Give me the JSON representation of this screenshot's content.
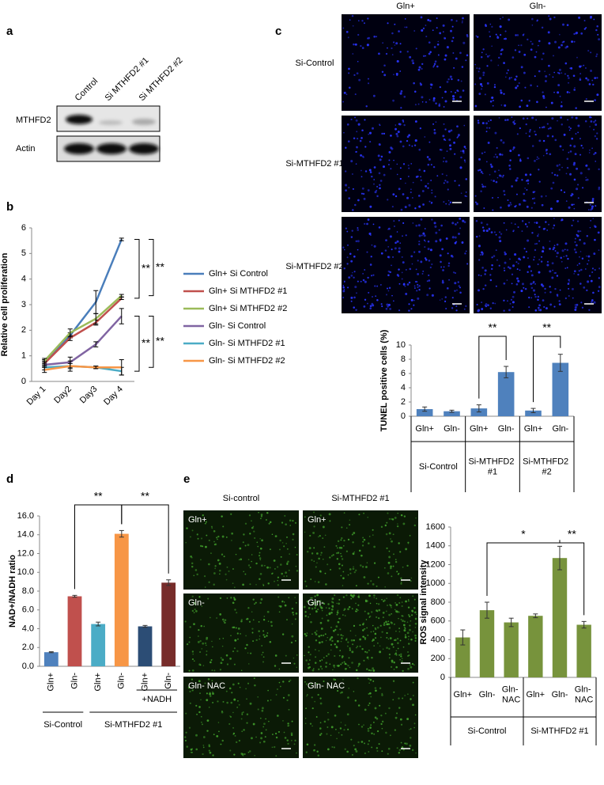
{
  "panel_labels": [
    "a",
    "b",
    "c",
    "d",
    "e"
  ],
  "blot": {
    "lanes": [
      "Control",
      "Si MTHFD2 #1",
      "Si MTHFD2 #2"
    ],
    "rows": [
      "MTHFD2",
      "Actin"
    ]
  },
  "microscopy_c": {
    "columns": [
      "Gln+",
      "Gln-"
    ],
    "rows": [
      "Si-Control",
      "Si-MTHFD2 #1",
      "Si-MTHFD2 #2"
    ]
  },
  "microscopy_e": {
    "columns": [
      "Si-control",
      "Si-MTHFD2 #1"
    ],
    "image_labels": [
      [
        "Gln+",
        "Gln+"
      ],
      [
        "Gln-",
        "Gln-"
      ],
      [
        "Gln- NAC",
        "Gln- NAC"
      ]
    ]
  },
  "chart_data": [
    {
      "type": "line",
      "y_label": "Relative cell proliferation",
      "categories": [
        "Day 1",
        "Day2",
        "Day3",
        "Day 4"
      ],
      "series": [
        {
          "name": "Gln+ Si Control",
          "color": "#4a7ebb",
          "values": [
            0.75,
            1.8,
            3.1,
            5.55
          ],
          "errors": [
            0.1,
            0.1,
            0.45,
            0.05
          ]
        },
        {
          "name": "Gln+ Si MTHFD2 #1",
          "color": "#c0504d",
          "values": [
            0.7,
            1.7,
            2.3,
            3.25
          ],
          "errors": [
            0.1,
            0.1,
            0.1,
            0.05
          ]
        },
        {
          "name": "Gln+ Si MTHFD2 #2",
          "color": "#9bbb59",
          "values": [
            0.8,
            1.9,
            2.45,
            3.35
          ],
          "errors": [
            0.1,
            0.15,
            0.2,
            0.05
          ]
        },
        {
          "name": "Gln- Si Control",
          "color": "#8064a2",
          "values": [
            0.65,
            0.75,
            1.45,
            2.55
          ],
          "errors": [
            0.1,
            0.2,
            0.1,
            0.3
          ]
        },
        {
          "name": "Gln- Si MTHFD2 #1",
          "color": "#4bacc6",
          "values": [
            0.55,
            0.6,
            0.55,
            0.4
          ],
          "errors": [
            0.1,
            0.2,
            0.05,
            0.15
          ]
        },
        {
          "name": "Gln- Si MTHFD2 #2",
          "color": "#f79646",
          "values": [
            0.45,
            0.6,
            0.55,
            0.55
          ],
          "errors": [
            0.1,
            0.1,
            0.05,
            0.3
          ]
        }
      ],
      "ylim": [
        0,
        6
      ],
      "yticks": [
        0,
        1,
        2,
        3,
        4,
        5,
        6
      ],
      "grid": false,
      "legend": "right",
      "annotations": [
        "**",
        "**",
        "**",
        "**"
      ]
    },
    {
      "type": "bar",
      "y_label": "TUNEL positive cells (%)",
      "categories": [
        "Gln+",
        "Gln-",
        "Gln+",
        "Gln-",
        "Gln+",
        "Gln-"
      ],
      "groups": [
        "Si-Control",
        "Si-MTHFD2 #1",
        "Si-MTHFD2 #2"
      ],
      "values": [
        1.0,
        0.7,
        1.1,
        6.2,
        0.8,
        7.5
      ],
      "errors": [
        0.3,
        0.15,
        0.5,
        0.8,
        0.3,
        1.2
      ],
      "color": "#4f81bd",
      "ylim": [
        0,
        10
      ],
      "yticks": [
        0,
        2,
        4,
        6,
        8,
        10
      ],
      "grid": false,
      "annotations": [
        "**",
        "**"
      ]
    },
    {
      "type": "bar",
      "y_label": "NAD+/NADH ratio",
      "categories": [
        "Gln+",
        "Gln-",
        "Gln+",
        "Gln-",
        "Gln+",
        "Gln-"
      ],
      "groups": [
        "Si-Control",
        "Si-MTHFD2 #1"
      ],
      "bracket_label": "+NADH",
      "values": [
        1.5,
        7.45,
        4.5,
        14.1,
        4.25,
        8.9
      ],
      "errors": [
        0.05,
        0.1,
        0.2,
        0.35,
        0.1,
        0.3
      ],
      "colors": [
        "#4f81bd",
        "#c0504d",
        "#4bacc6",
        "#f79646",
        "#2c4d75",
        "#772c2a"
      ],
      "ylim": [
        0,
        16
      ],
      "yticks": [
        {
          "value": 0,
          "label": "0.0"
        },
        {
          "value": 2,
          "label": "2.0"
        },
        {
          "value": 4,
          "label": "4.0"
        },
        {
          "value": 6,
          "label": "6.0"
        },
        {
          "value": 8,
          "label": "8.0"
        },
        {
          "value": 10,
          "label": "10.0"
        },
        {
          "value": 12,
          "label": "12.0"
        },
        {
          "value": 14,
          "label": "14.0"
        },
        {
          "value": 16,
          "label": "16.0"
        }
      ],
      "grid": false,
      "annotations": [
        "**",
        "**"
      ]
    },
    {
      "type": "bar",
      "y_label": "ROS signal intensity",
      "categories": [
        "Gln+",
        "Gln-",
        "Gln- NAC",
        "Gln+",
        "Gln-",
        "Gln- NAC"
      ],
      "groups": [
        "Si-Control",
        "Si-MTHFD2 #1"
      ],
      "values": [
        425,
        715,
        585,
        655,
        1270,
        560
      ],
      "errors": [
        80,
        85,
        45,
        20,
        125,
        35
      ],
      "color": "#77933c",
      "ylim": [
        0,
        1600
      ],
      "yticks": [
        0,
        200,
        400,
        600,
        800,
        1000,
        1200,
        1400,
        1600
      ],
      "grid": false,
      "annotations": [
        "*",
        "**"
      ]
    }
  ]
}
